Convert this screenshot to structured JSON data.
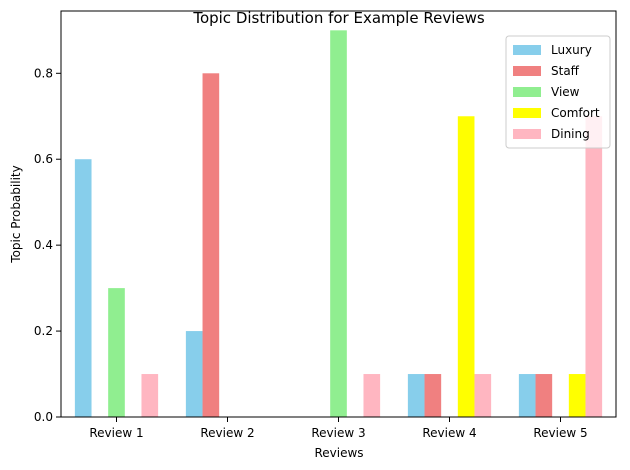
{
  "chart_data": {
    "type": "bar",
    "title": "Topic Distribution for Example Reviews",
    "xlabel": "Reviews",
    "ylabel": "Topic Probability",
    "categories": [
      "Review 1",
      "Review 2",
      "Review 3",
      "Review 4",
      "Review 5"
    ],
    "series": [
      {
        "name": "Luxury",
        "color": "#87ceeb",
        "values": [
          0.6,
          0.2,
          0.0,
          0.1,
          0.1
        ]
      },
      {
        "name": "Staff",
        "color": "#f08080",
        "values": [
          0.0,
          0.8,
          0.0,
          0.1,
          0.1
        ]
      },
      {
        "name": "View",
        "color": "#90ee90",
        "values": [
          0.3,
          0.0,
          0.9,
          0.0,
          0.0
        ]
      },
      {
        "name": "Comfort",
        "color": "#ffff00",
        "values": [
          0.0,
          0.0,
          0.0,
          0.7,
          0.1
        ]
      },
      {
        "name": "Dining",
        "color": "#ffb6c1",
        "values": [
          0.1,
          0.0,
          0.1,
          0.1,
          0.7
        ]
      }
    ],
    "yticks": [
      0.0,
      0.2,
      0.4,
      0.6,
      0.8
    ],
    "ytick_labels": [
      "0.0",
      "0.2",
      "0.4",
      "0.6",
      "0.8"
    ],
    "ylim": [
      0,
      0.945
    ],
    "grid": false,
    "legend_position": "top-right"
  }
}
